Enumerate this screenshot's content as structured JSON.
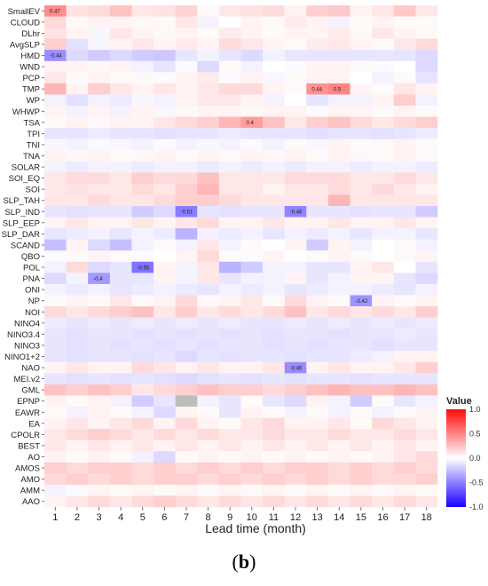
{
  "panel_label": {
    "open": "(",
    "letter": "b",
    "close": ")"
  },
  "colors": {
    "negative": "#1a00ff",
    "neutral": "#ffffff",
    "positive": "#ff0a0a",
    "missing": "#bdbdbd"
  },
  "chart_data": {
    "type": "heatmap",
    "xlabel": "Lead time (month)",
    "ylabel": "",
    "x": [
      "1",
      "2",
      "3",
      "4",
      "5",
      "6",
      "7",
      "8",
      "9",
      "10",
      "11",
      "12",
      "13",
      "14",
      "15",
      "16",
      "17",
      "18"
    ],
    "y": [
      "SmallEV",
      "CLOUD",
      "DLhr",
      "AvgSLP",
      "HMD",
      "WND",
      "PCP",
      "TMP",
      "WP",
      "WHWP",
      "TSA",
      "TPI",
      "TNI",
      "TNA",
      "SOLAR",
      "SOI_EQ",
      "SOI",
      "SLP_TAH",
      "SLP_IND",
      "SLP_EEP",
      "SLP_DAR",
      "SCAND",
      "QBO",
      "POL",
      "PNA",
      "ONI",
      "NP",
      "NOI",
      "NINO4",
      "NINO3.4",
      "NINO3",
      "NINO1+2",
      "NAO",
      "MEI.v2",
      "GML",
      "EPNP",
      "EAWR",
      "EA",
      "CPOLR",
      "BEST",
      "AO",
      "AMOS",
      "AMO",
      "AMM",
      "AAO"
    ],
    "legend": {
      "title": "Value",
      "ticks": [
        "1.0",
        "0.5",
        "0.0",
        "-0.5",
        "-1.0"
      ],
      "range": [
        -1,
        1
      ],
      "placement": "right"
    },
    "values": [
      [
        0.47,
        0.12,
        0.15,
        0.25,
        0.1,
        0.12,
        0.18,
        0.02,
        0.1,
        0.12,
        0.15,
        0.05,
        0.2,
        0.22,
        0.05,
        0.1,
        0.22,
        0.1
      ],
      [
        0.15,
        0.02,
        0.05,
        0.05,
        0.03,
        0.02,
        0.1,
        -0.05,
        0.0,
        0.05,
        0.02,
        0.08,
        0.05,
        -0.05,
        0.02,
        0.05,
        0.02,
        0.02
      ],
      [
        0.12,
        0.05,
        -0.03,
        0.1,
        0.05,
        0.03,
        0.05,
        0.02,
        0.08,
        0.05,
        0.02,
        0.05,
        0.05,
        0.08,
        0.03,
        0.1,
        0.05,
        0.02
      ],
      [
        0.2,
        -0.12,
        -0.03,
        0.05,
        0.1,
        0.05,
        0.08,
        0.05,
        0.15,
        0.1,
        0.05,
        0.02,
        0.08,
        0.1,
        0.05,
        0.02,
        0.1,
        0.15
      ],
      [
        -0.44,
        -0.15,
        -0.2,
        -0.15,
        -0.2,
        -0.22,
        -0.1,
        -0.05,
        -0.1,
        -0.15,
        -0.05,
        -0.1,
        -0.1,
        -0.1,
        -0.1,
        -0.1,
        -0.1,
        -0.15
      ],
      [
        0.05,
        0.05,
        0.03,
        0.05,
        -0.05,
        -0.1,
        -0.02,
        -0.15,
        0.02,
        -0.05,
        0.0,
        -0.02,
        0.05,
        0.05,
        0.02,
        -0.02,
        0.0,
        -0.15
      ],
      [
        0.1,
        0.02,
        0.05,
        0.02,
        0.03,
        -0.02,
        0.05,
        0.08,
        -0.02,
        0.05,
        -0.03,
        0.02,
        0.05,
        0.05,
        0.0,
        -0.05,
        0.02,
        -0.1
      ],
      [
        0.3,
        0.05,
        0.2,
        0.1,
        0.05,
        0.1,
        0.05,
        0.1,
        0.15,
        0.15,
        0.05,
        0.02,
        0.44,
        0.5,
        0.05,
        0.02,
        0.1,
        0.05
      ],
      [
        -0.05,
        -0.12,
        -0.05,
        -0.08,
        -0.03,
        -0.05,
        0.05,
        0.1,
        0.1,
        0.05,
        -0.05,
        0.0,
        -0.1,
        -0.05,
        -0.05,
        0.05,
        0.2,
        -0.05
      ],
      [
        0.05,
        -0.05,
        0.05,
        -0.05,
        0.05,
        -0.03,
        0.03,
        0.05,
        0.05,
        0.03,
        0.05,
        0.05,
        -0.02,
        0.05,
        0.05,
        0.02,
        0.05,
        0.02
      ],
      [
        0.02,
        0.05,
        0.02,
        0.05,
        0.05,
        0.1,
        0.15,
        0.2,
        0.3,
        0.4,
        0.25,
        0.1,
        0.2,
        0.25,
        0.15,
        0.1,
        0.15,
        0.2
      ],
      [
        -0.1,
        -0.1,
        -0.08,
        -0.1,
        -0.1,
        -0.12,
        -0.1,
        -0.1,
        -0.08,
        -0.1,
        -0.1,
        -0.1,
        -0.12,
        -0.1,
        -0.1,
        -0.12,
        -0.1,
        -0.08
      ],
      [
        -0.03,
        -0.05,
        -0.02,
        -0.03,
        -0.05,
        -0.02,
        -0.05,
        -0.03,
        -0.05,
        -0.02,
        -0.05,
        0.02,
        -0.03,
        0.05,
        0.02,
        0.03,
        0.05,
        0.02
      ],
      [
        0.05,
        0.03,
        0.05,
        0.02,
        0.03,
        0.05,
        0.02,
        0.05,
        0.02,
        0.05,
        0.03,
        0.05,
        0.02,
        0.05,
        0.03,
        0.02,
        0.05,
        0.02
      ],
      [
        -0.05,
        -0.08,
        -0.05,
        -0.05,
        -0.08,
        -0.05,
        -0.05,
        -0.08,
        -0.05,
        -0.08,
        -0.05,
        -0.08,
        -0.05,
        -0.05,
        -0.08,
        -0.05,
        -0.05,
        -0.08
      ],
      [
        0.1,
        0.15,
        0.15,
        0.1,
        0.2,
        0.15,
        0.15,
        0.25,
        0.1,
        0.1,
        0.1,
        0.15,
        0.15,
        0.15,
        0.1,
        0.1,
        0.15,
        0.1
      ],
      [
        0.1,
        0.12,
        0.1,
        0.1,
        0.15,
        0.1,
        0.2,
        0.3,
        0.1,
        0.1,
        0.05,
        0.1,
        0.1,
        0.15,
        0.1,
        0.15,
        0.1,
        0.05
      ],
      [
        0.1,
        0.1,
        0.15,
        0.1,
        0.1,
        0.15,
        0.2,
        0.2,
        0.15,
        0.1,
        0.1,
        0.1,
        0.1,
        0.3,
        0.1,
        0.1,
        0.1,
        0.1
      ],
      [
        -0.1,
        -0.12,
        -0.1,
        -0.1,
        -0.2,
        -0.15,
        -0.51,
        -0.1,
        -0.12,
        -0.1,
        -0.1,
        -0.48,
        -0.1,
        -0.1,
        -0.12,
        -0.1,
        -0.1,
        -0.2
      ],
      [
        0.05,
        0.1,
        0.05,
        0.05,
        0.1,
        0.05,
        0.1,
        0.15,
        0.05,
        0.05,
        0.1,
        0.05,
        0.05,
        0.1,
        0.05,
        0.05,
        0.1,
        0.05
      ],
      [
        -0.1,
        -0.08,
        -0.05,
        -0.1,
        -0.05,
        -0.08,
        -0.3,
        -0.05,
        -0.08,
        -0.05,
        -0.1,
        -0.05,
        -0.08,
        -0.05,
        -0.1,
        -0.05,
        -0.05,
        -0.1
      ],
      [
        -0.25,
        0.05,
        -0.15,
        -0.25,
        -0.05,
        0.02,
        -0.05,
        0.1,
        -0.05,
        0.02,
        0.0,
        0.05,
        -0.2,
        0.05,
        -0.05,
        0.0,
        0.02,
        -0.05
      ],
      [
        -0.02,
        0.02,
        0.05,
        0.02,
        -0.02,
        0.0,
        0.05,
        0.15,
        0.02,
        -0.02,
        0.05,
        0.0,
        0.02,
        0.05,
        0.02,
        0.0,
        0.02,
        0.05
      ],
      [
        -0.05,
        0.15,
        -0.15,
        -0.1,
        -0.55,
        0.05,
        -0.05,
        0.1,
        -0.3,
        -0.2,
        -0.05,
        -0.05,
        -0.1,
        -0.1,
        0.05,
        0.1,
        0.0,
        -0.1
      ],
      [
        -0.15,
        -0.05,
        -0.4,
        -0.1,
        -0.1,
        0.05,
        -0.05,
        0.1,
        -0.1,
        -0.05,
        -0.05,
        0.05,
        -0.1,
        -0.05,
        0.05,
        0.05,
        -0.1,
        -0.15
      ],
      [
        -0.05,
        -0.08,
        -0.05,
        -0.1,
        -0.08,
        -0.05,
        -0.08,
        -0.1,
        -0.05,
        -0.08,
        -0.05,
        -0.1,
        -0.08,
        -0.05,
        -0.05,
        -0.08,
        -0.1,
        -0.05
      ],
      [
        0.02,
        0.05,
        0.02,
        0.1,
        0.02,
        0.05,
        0.15,
        0.02,
        0.05,
        0.1,
        0.02,
        0.15,
        0.05,
        0.02,
        -0.42,
        0.05,
        0.02,
        0.05
      ],
      [
        0.15,
        0.1,
        0.15,
        0.2,
        0.25,
        0.1,
        0.2,
        0.1,
        0.15,
        0.1,
        0.15,
        0.25,
        0.1,
        0.15,
        0.1,
        0.15,
        0.1,
        0.2
      ],
      [
        -0.08,
        -0.1,
        -0.08,
        -0.1,
        -0.08,
        -0.1,
        -0.08,
        -0.1,
        -0.08,
        -0.1,
        -0.1,
        -0.08,
        -0.1,
        -0.08,
        -0.1,
        -0.08,
        -0.1,
        -0.08
      ],
      [
        -0.1,
        -0.12,
        -0.1,
        -0.1,
        -0.12,
        -0.1,
        -0.12,
        -0.1,
        -0.12,
        -0.1,
        -0.12,
        -0.1,
        -0.1,
        -0.12,
        -0.1,
        -0.1,
        -0.08,
        -0.1
      ],
      [
        -0.1,
        -0.12,
        -0.1,
        -0.12,
        -0.1,
        -0.12,
        -0.1,
        -0.12,
        -0.1,
        -0.1,
        -0.12,
        -0.1,
        -0.12,
        -0.1,
        -0.1,
        -0.12,
        -0.1,
        -0.1
      ],
      [
        -0.1,
        -0.12,
        -0.1,
        -0.1,
        -0.12,
        -0.1,
        -0.15,
        -0.1,
        -0.12,
        -0.1,
        -0.1,
        -0.12,
        -0.1,
        -0.1,
        -0.08,
        -0.05,
        0.05,
        0.05
      ],
      [
        0.05,
        0.1,
        0.05,
        0.05,
        0.15,
        0.1,
        0.05,
        0.1,
        0.05,
        0.05,
        0.1,
        -0.45,
        0.05,
        0.1,
        0.05,
        0.05,
        0.1,
        0.2
      ],
      [
        -0.1,
        -0.12,
        -0.1,
        -0.12,
        -0.1,
        -0.12,
        -0.15,
        -0.12,
        -0.1,
        -0.12,
        -0.1,
        -0.12,
        -0.1,
        -0.1,
        -0.12,
        -0.1,
        -0.1,
        -0.1
      ],
      [
        0.25,
        0.2,
        0.25,
        0.2,
        0.1,
        0.15,
        0.2,
        0.25,
        0.2,
        0.2,
        0.15,
        0.2,
        0.25,
        0.3,
        0.25,
        0.25,
        0.3,
        0.25
      ],
      [
        0.05,
        0.02,
        0.05,
        -0.05,
        -0.2,
        -0.1,
        null,
        -0.05,
        -0.1,
        0.02,
        -0.1,
        -0.15,
        0.05,
        -0.05,
        -0.2,
        0.02,
        -0.1,
        -0.05
      ],
      [
        0.02,
        -0.05,
        0.05,
        0.02,
        -0.05,
        -0.15,
        0.05,
        0.02,
        -0.1,
        0.05,
        0.02,
        -0.05,
        0.02,
        -0.05,
        0.02,
        -0.05,
        0.02,
        0.05
      ],
      [
        0.05,
        0.1,
        0.05,
        0.1,
        0.15,
        0.05,
        0.15,
        0.05,
        0.02,
        0.1,
        0.15,
        0.05,
        0.05,
        0.1,
        0.02,
        0.15,
        0.1,
        0.05
      ],
      [
        0.1,
        0.15,
        0.2,
        0.15,
        0.1,
        0.15,
        0.1,
        0.15,
        0.1,
        0.1,
        0.15,
        0.1,
        0.1,
        0.15,
        0.1,
        0.1,
        0.15,
        0.1
      ],
      [
        0.1,
        0.05,
        0.1,
        0.05,
        0.1,
        0.05,
        0.1,
        0.05,
        0.1,
        0.05,
        0.1,
        0.05,
        0.1,
        0.05,
        0.1,
        0.05,
        0.1,
        0.05
      ],
      [
        0.05,
        0.02,
        0.05,
        0.02,
        -0.05,
        -0.15,
        0.02,
        0.05,
        0.02,
        0.05,
        0.02,
        0.05,
        0.02,
        0.05,
        0.02,
        0.05,
        0.1,
        0.15
      ],
      [
        0.2,
        0.15,
        0.2,
        0.2,
        0.15,
        0.2,
        0.15,
        0.2,
        0.15,
        0.2,
        0.15,
        0.2,
        0.2,
        0.15,
        0.2,
        0.15,
        0.2,
        0.15
      ],
      [
        0.15,
        0.2,
        0.15,
        0.2,
        0.15,
        0.2,
        0.2,
        0.15,
        0.2,
        0.15,
        0.2,
        0.15,
        0.2,
        0.15,
        0.2,
        0.15,
        0.15,
        0.2
      ],
      [
        -0.05,
        -0.02,
        0.05,
        0.02,
        0.05,
        0.02,
        0.05,
        0.02,
        0.05,
        0.02,
        0.05,
        0.02,
        0.05,
        0.02,
        0.05,
        0.02,
        0.05,
        0.02
      ],
      [
        0.05,
        0.1,
        0.15,
        0.1,
        0.15,
        0.2,
        0.15,
        0.1,
        0.15,
        0.1,
        0.15,
        0.1,
        0.15,
        0.1,
        0.15,
        0.1,
        0.15,
        0.1
      ]
    ],
    "labeled_values": [
      "0.47",
      "-0.44",
      "0.44",
      "0.5",
      "0.4",
      "-0.51",
      "-0.48",
      "-0.55",
      "-0.4",
      "-0.42",
      "-0.45"
    ]
  }
}
